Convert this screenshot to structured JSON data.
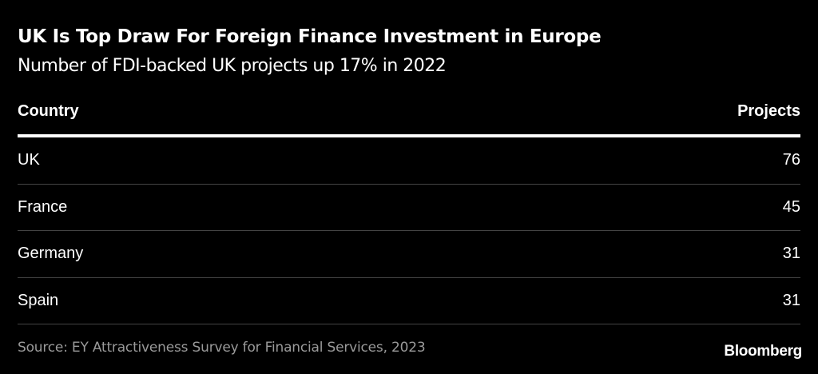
{
  "chart_data": {
    "type": "table",
    "title": "UK Is Top Draw For Foreign Finance Investment in Europe",
    "subtitle": "Number of FDI-backed UK projects up 17% in 2022",
    "columns": [
      "Country",
      "Projects"
    ],
    "rows": [
      {
        "country": "UK",
        "projects": "76"
      },
      {
        "country": "France",
        "projects": "45"
      },
      {
        "country": "Germany",
        "projects": "31"
      },
      {
        "country": "Spain",
        "projects": "31"
      }
    ],
    "source": "Source: EY Attractiveness Survey for Financial Services, 2023",
    "brand": "Bloomberg"
  },
  "colors": {
    "background": "#000000",
    "text": "#ffffff",
    "muted": "#9a9a9a",
    "divider": "#444444"
  }
}
